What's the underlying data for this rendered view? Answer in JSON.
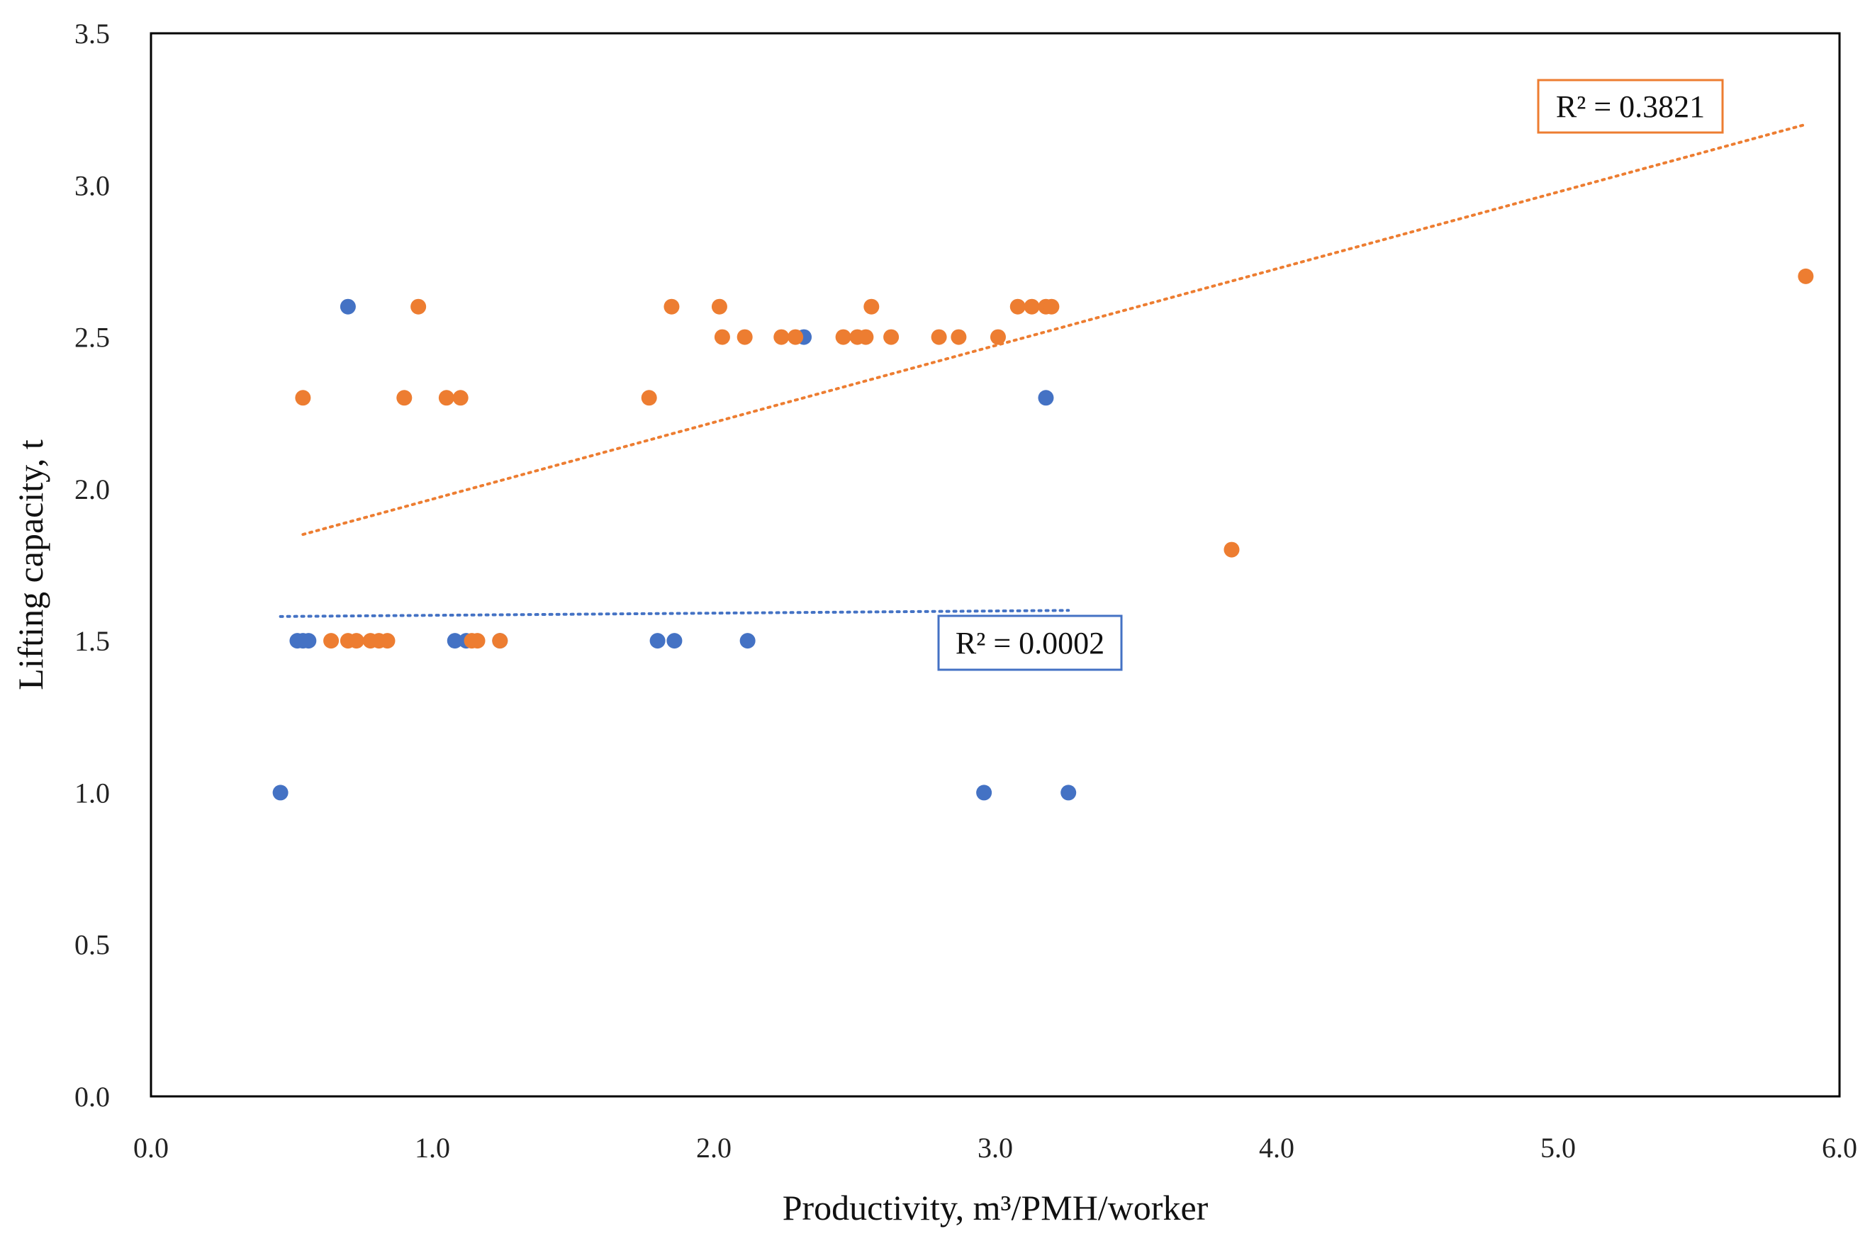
{
  "chart_data": {
    "type": "scatter",
    "title": "",
    "xlabel": "Productivity, m³/PMH/worker",
    "ylabel": "Lifting capacity, t",
    "xlim": [
      0,
      6
    ],
    "ylim": [
      0,
      3.5
    ],
    "xticks": [
      "0.0",
      "1.0",
      "2.0",
      "3.0",
      "4.0",
      "5.0",
      "6.0"
    ],
    "yticks": [
      "0.0",
      "0.5",
      "1.0",
      "1.5",
      "2.0",
      "2.5",
      "3.0",
      "3.5"
    ],
    "grid": false,
    "legend": "none",
    "series": [
      {
        "name": "blue series",
        "color": "#4472C4",
        "points": [
          {
            "x": 0.46,
            "y": 1.0
          },
          {
            "x": 0.52,
            "y": 1.5
          },
          {
            "x": 0.54,
            "y": 1.5
          },
          {
            "x": 0.56,
            "y": 1.5
          },
          {
            "x": 0.7,
            "y": 2.6
          },
          {
            "x": 1.08,
            "y": 1.5
          },
          {
            "x": 1.12,
            "y": 1.5
          },
          {
            "x": 1.24,
            "y": 1.5
          },
          {
            "x": 1.8,
            "y": 1.5
          },
          {
            "x": 1.86,
            "y": 1.5
          },
          {
            "x": 2.12,
            "y": 1.5
          },
          {
            "x": 2.32,
            "y": 2.5
          },
          {
            "x": 2.96,
            "y": 1.0
          },
          {
            "x": 3.18,
            "y": 2.3
          },
          {
            "x": 3.26,
            "y": 1.0
          }
        ],
        "trendline": {
          "x": [
            0.46,
            3.26
          ],
          "y": [
            1.58,
            1.6
          ]
        },
        "r2_label": "R² = 0.0002"
      },
      {
        "name": "orange series",
        "color": "#ED7D31",
        "points": [
          {
            "x": 0.54,
            "y": 2.3
          },
          {
            "x": 0.64,
            "y": 1.5
          },
          {
            "x": 0.7,
            "y": 1.5
          },
          {
            "x": 0.73,
            "y": 1.5
          },
          {
            "x": 0.78,
            "y": 1.5
          },
          {
            "x": 0.81,
            "y": 1.5
          },
          {
            "x": 0.84,
            "y": 1.5
          },
          {
            "x": 0.9,
            "y": 2.3
          },
          {
            "x": 0.95,
            "y": 2.6
          },
          {
            "x": 1.05,
            "y": 2.3
          },
          {
            "x": 1.1,
            "y": 2.3
          },
          {
            "x": 1.14,
            "y": 1.5
          },
          {
            "x": 1.16,
            "y": 1.5
          },
          {
            "x": 1.24,
            "y": 1.5
          },
          {
            "x": 1.77,
            "y": 2.3
          },
          {
            "x": 1.85,
            "y": 2.6
          },
          {
            "x": 2.02,
            "y": 2.6
          },
          {
            "x": 2.03,
            "y": 2.5
          },
          {
            "x": 2.11,
            "y": 2.5
          },
          {
            "x": 2.24,
            "y": 2.5
          },
          {
            "x": 2.29,
            "y": 2.5
          },
          {
            "x": 2.46,
            "y": 2.5
          },
          {
            "x": 2.51,
            "y": 2.5
          },
          {
            "x": 2.54,
            "y": 2.5
          },
          {
            "x": 2.56,
            "y": 2.6
          },
          {
            "x": 2.63,
            "y": 2.5
          },
          {
            "x": 2.8,
            "y": 2.5
          },
          {
            "x": 2.87,
            "y": 2.5
          },
          {
            "x": 3.01,
            "y": 2.5
          },
          {
            "x": 3.08,
            "y": 2.6
          },
          {
            "x": 3.13,
            "y": 2.6
          },
          {
            "x": 3.18,
            "y": 2.6
          },
          {
            "x": 3.2,
            "y": 2.6
          },
          {
            "x": 3.84,
            "y": 1.8
          },
          {
            "x": 5.88,
            "y": 2.7
          }
        ],
        "trendline": {
          "x": [
            0.54,
            5.88
          ],
          "y": [
            1.85,
            3.2
          ]
        },
        "r2_label": "R² = 0.3821"
      }
    ]
  }
}
